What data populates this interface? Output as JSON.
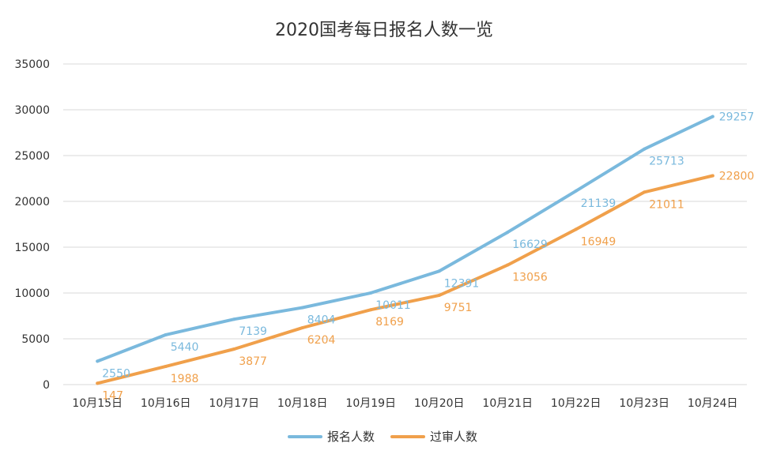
{
  "chart_data": {
    "type": "line",
    "title": "2020国考每日报名人数一览",
    "categories": [
      "10月15日",
      "10月16日",
      "10月17日",
      "10月18日",
      "10月19日",
      "10月20日",
      "10月21日",
      "10月22日",
      "10月23日",
      "10月24日"
    ],
    "series": [
      {
        "name": "报名人数",
        "color": "#7ab9dd",
        "values": [
          2550,
          5440,
          7139,
          8404,
          10011,
          12391,
          16629,
          21139,
          25713,
          29257
        ]
      },
      {
        "name": "过审人数",
        "color": "#f0a04b",
        "values": [
          147,
          1988,
          3877,
          6204,
          8169,
          9751,
          13056,
          16949,
          21011,
          22800
        ]
      }
    ],
    "ylim": [
      0,
      35000
    ],
    "yticks": [
      0,
      5000,
      10000,
      15000,
      20000,
      25000,
      30000,
      35000
    ],
    "grid": true,
    "legend": "bottom",
    "xlabel": "",
    "ylabel": ""
  }
}
